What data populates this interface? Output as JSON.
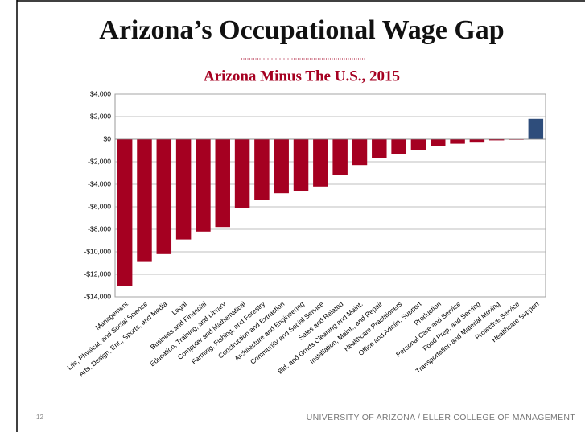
{
  "chart_data": {
    "type": "bar",
    "title": "Arizona’s Occupational Wage Gap",
    "subtitle": "Arizona Minus The U.S., 2015",
    "categories": [
      "Management",
      "Life, Physical, and Social Science",
      "Arts, Design, Ent., Sports, and Media",
      "Legal",
      "Business and Financial",
      "Education, Training, and Library",
      "Computer and Mathematical",
      "Farming, Fishing, and Forestry",
      "Construction and Extraction",
      "Architecture and Engineering",
      "Community and Social Service",
      "Sales and Related",
      "Bld. and Grnds Cleaning and Maint.",
      "Installation, Maint., and Repair",
      "Healthcare Practitioners",
      "Office and Admin. Support",
      "Production",
      "Personal Care and Service",
      "Food Prep. and Serving",
      "Transportation and Material Moving",
      "Protective Service",
      "Healthcare Support"
    ],
    "values": [
      -13000,
      -10900,
      -10200,
      -8900,
      -8200,
      -7800,
      -6100,
      -5400,
      -4800,
      -4600,
      -4200,
      -3200,
      -2300,
      -1700,
      -1300,
      -1000,
      -600,
      -400,
      -300,
      -100,
      -50,
      1800
    ],
    "colors": [
      "#a50021",
      "#a50021",
      "#a50021",
      "#a50021",
      "#a50021",
      "#a50021",
      "#a50021",
      "#a50021",
      "#a50021",
      "#a50021",
      "#a50021",
      "#a50021",
      "#a50021",
      "#a50021",
      "#a50021",
      "#a50021",
      "#a50021",
      "#a50021",
      "#a50021",
      "#a50021",
      "#a50021",
      "#2e4d7b"
    ],
    "ylim": [
      -14000,
      4000
    ],
    "yticks": [
      {
        "value": 4000,
        "label": "$4,000"
      },
      {
        "value": 2000,
        "label": "$2,000"
      },
      {
        "value": 0,
        "label": "$0"
      },
      {
        "value": -2000,
        "label": "-$2,000"
      },
      {
        "value": -4000,
        "label": "-$4,000"
      },
      {
        "value": -6000,
        "label": "-$6,000"
      },
      {
        "value": -8000,
        "label": "-$8,000"
      },
      {
        "value": -10000,
        "label": "-$10,000"
      },
      {
        "value": -12000,
        "label": "-$12,000"
      },
      {
        "value": -14000,
        "label": "-$14,000"
      }
    ],
    "grid": true
  },
  "footer": {
    "page": "12",
    "text": "UNIVERSITY OF ARIZONA / ELLER COLLEGE OF MANAGEMENT"
  }
}
